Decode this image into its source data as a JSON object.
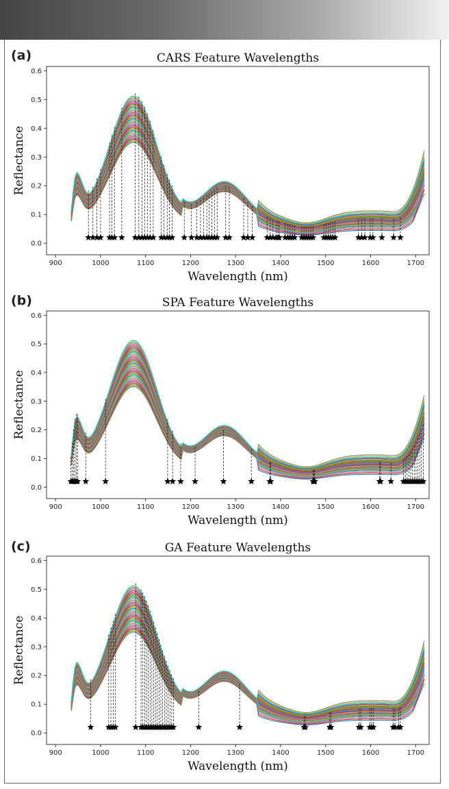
{
  "chart_data": [
    {
      "type": "line",
      "panel_label": "(a)",
      "title": "CARS Feature Wavelengths",
      "xlabel": "Wavelength (nm)",
      "ylabel": "Reflectance",
      "xlim": [
        880,
        1730
      ],
      "ylim": [
        -0.04,
        0.615
      ],
      "xticks": [
        "900",
        "1000",
        "1100",
        "1200",
        "1300",
        "1400",
        "1500",
        "1600",
        "1700"
      ],
      "yticks": [
        "0.0",
        "0.1",
        "0.2",
        "0.3",
        "0.4",
        "0.5",
        "0.6"
      ],
      "spectra_count": 40,
      "feature_wavelengths": [
        973,
        983,
        992,
        1000,
        1020,
        1025,
        1031,
        1047,
        1077,
        1085,
        1092,
        1098,
        1104,
        1110,
        1117,
        1135,
        1141,
        1148,
        1153,
        1159,
        1186,
        1202,
        1214,
        1222,
        1229,
        1236,
        1241,
        1247,
        1253,
        1259,
        1278,
        1286,
        1318,
        1327,
        1337,
        1370,
        1377,
        1383,
        1390,
        1394,
        1397,
        1410,
        1416,
        1421,
        1426,
        1431,
        1447,
        1452,
        1457,
        1462,
        1467,
        1472,
        1496,
        1501,
        1506,
        1511,
        1516,
        1521,
        1573,
        1580,
        1587,
        1599,
        1605,
        1625,
        1651,
        1666
      ]
    },
    {
      "type": "line",
      "panel_label": "(b)",
      "title": "SPA Feature Wavelengths",
      "xlabel": "Wavelength (nm)",
      "ylabel": "Reflectance",
      "xlim": [
        880,
        1730
      ],
      "ylim": [
        -0.04,
        0.615
      ],
      "xticks": [
        "900",
        "1000",
        "1100",
        "1200",
        "1300",
        "1400",
        "1500",
        "1600",
        "1700"
      ],
      "yticks": [
        "0.0",
        "0.1",
        "0.2",
        "0.3",
        "0.4",
        "0.5",
        "0.6"
      ],
      "spectra_count": 40,
      "feature_wavelengths": [
        934,
        937,
        940,
        943,
        946,
        949,
        967,
        1011,
        1149,
        1160,
        1178,
        1210,
        1273,
        1335,
        1376,
        1378,
        1472,
        1474,
        1476,
        1620,
        1622,
        1645,
        1673,
        1677,
        1681,
        1685,
        1689,
        1693,
        1697,
        1701,
        1705,
        1709,
        1713,
        1717
      ]
    },
    {
      "type": "line",
      "panel_label": "(c)",
      "title": "GA Feature Wavelengths",
      "xlabel": "Wavelength (nm)",
      "ylabel": "Reflectance",
      "xlim": [
        880,
        1730
      ],
      "ylim": [
        -0.04,
        0.615
      ],
      "xticks": [
        "900",
        "1000",
        "1100",
        "1200",
        "1300",
        "1400",
        "1500",
        "1600",
        "1700"
      ],
      "yticks": [
        "0.0",
        "0.1",
        "0.2",
        "0.3",
        "0.4",
        "0.5",
        "0.6"
      ],
      "spectra_count": 40,
      "feature_wavelengths": [
        978,
        1018,
        1023,
        1028,
        1033,
        1078,
        1090,
        1094,
        1098,
        1102,
        1106,
        1110,
        1114,
        1118,
        1122,
        1126,
        1130,
        1134,
        1138,
        1142,
        1146,
        1150,
        1154,
        1158,
        1162,
        1218,
        1309,
        1452,
        1455,
        1509,
        1512,
        1574,
        1578,
        1598,
        1602,
        1606,
        1650,
        1654,
        1662,
        1666
      ]
    }
  ],
  "colors": {
    "palette": [
      "#1f77b4",
      "#ff7f0e",
      "#2ca02c",
      "#d62728",
      "#9467bd",
      "#8c564b",
      "#e377c2",
      "#7f7f7f",
      "#bcbd22",
      "#17becf"
    ],
    "marker": "#000000"
  }
}
